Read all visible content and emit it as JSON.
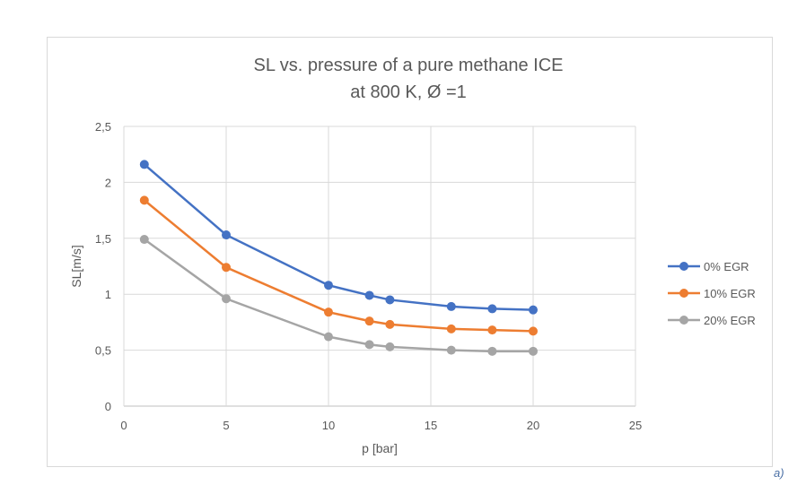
{
  "chart_data": {
    "type": "line",
    "title": [
      "SL vs. pressure of a pure methane ICE",
      "at 800 K, Ø =1"
    ],
    "xlabel": "p [bar]",
    "ylabel": "SL[m/s]",
    "xlim": [
      0,
      25
    ],
    "ylim": [
      0,
      2.5
    ],
    "xticks": [
      0,
      5,
      10,
      15,
      20,
      25
    ],
    "xtick_labels": [
      "0",
      "5",
      "10",
      "15",
      "20",
      "25"
    ],
    "yticks": [
      0,
      0.5,
      1,
      1.5,
      2,
      2.5
    ],
    "ytick_labels": [
      "0",
      "0,5",
      "1",
      "1,5",
      "2",
      "2,5"
    ],
    "grid": true,
    "legend_position": "right",
    "x": [
      1,
      5,
      10,
      12,
      13,
      16,
      18,
      20
    ],
    "series": [
      {
        "name": "0% EGR",
        "color": "#4472C4",
        "values": [
          2.16,
          1.53,
          1.08,
          0.99,
          0.95,
          0.89,
          0.87,
          0.86
        ]
      },
      {
        "name": "10% EGR",
        "color": "#ED7D31",
        "values": [
          1.84,
          1.24,
          0.84,
          0.76,
          0.73,
          0.69,
          0.68,
          0.67
        ]
      },
      {
        "name": "20% EGR",
        "color": "#A5A5A5",
        "values": [
          1.49,
          0.96,
          0.62,
          0.55,
          0.53,
          0.5,
          0.49,
          0.49
        ]
      }
    ]
  },
  "corner_label": "a)"
}
